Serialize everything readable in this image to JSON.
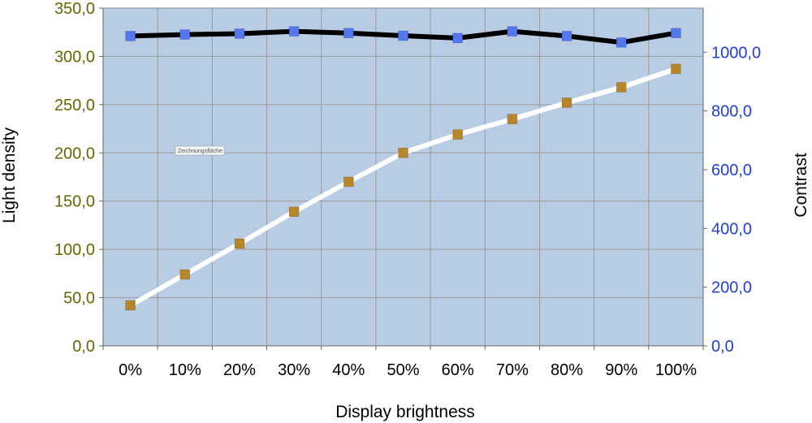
{
  "chart_data": {
    "type": "line",
    "xlabel": "Display brightness",
    "ylabel_left": "Light density",
    "ylabel_right": "Contrast",
    "categories": [
      "0%",
      "10%",
      "20%",
      "30%",
      "40%",
      "50%",
      "60%",
      "70%",
      "80%",
      "90%",
      "100%"
    ],
    "series": [
      {
        "axis": "right",
        "color": "#000000",
        "marker_color": "#5577ee",
        "values": [
          1055,
          1060,
          1063,
          1071,
          1065,
          1056,
          1048,
          1071,
          1055,
          1033,
          1065
        ]
      },
      {
        "axis": "left",
        "color": "#ffffff",
        "marker_color": "#b8862a",
        "values": [
          42,
          74,
          106,
          139,
          170,
          200,
          219,
          235,
          252,
          268,
          287
        ]
      }
    ],
    "ylim_left": [
      0,
      350
    ],
    "ylim_right": [
      0,
      1150
    ],
    "yticks_left": [
      "0,0",
      "50,0",
      "100,0",
      "150,0",
      "200,0",
      "250,0",
      "300,0",
      "350,0"
    ],
    "yticks_right": [
      "0,0",
      "200,0",
      "400,0",
      "600,0",
      "800,0",
      "1000,0"
    ],
    "yticks_right_values": [
      0,
      200,
      400,
      600,
      800,
      1000
    ],
    "grid": true,
    "plot_background": "#b8cce4",
    "left_tick_color": "#666600",
    "right_tick_color": "#1f3fd6",
    "annotation": "Zeichnungsfläche"
  }
}
